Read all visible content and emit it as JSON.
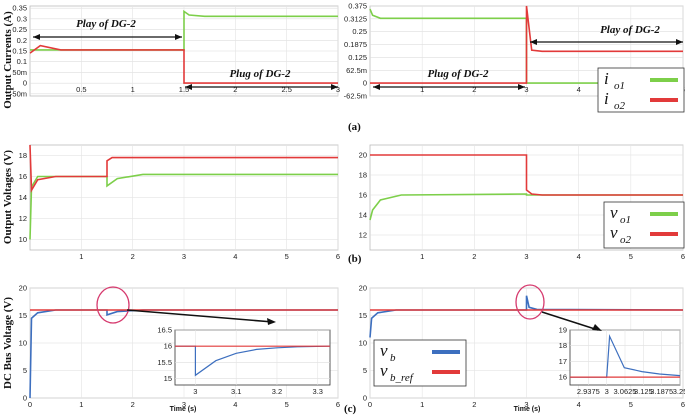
{
  "figure": {
    "ylabels": {
      "currents": "Output Currents (A)",
      "voltages": "Output Voltages (V)",
      "bus": "DC Bus Voltage (V)"
    },
    "panel_labels": {
      "a": "(a)",
      "b": "(b)",
      "c": "(c)"
    },
    "xlabel": "Time (s)",
    "annotations": {
      "play": "Play of DG-2",
      "plug": "Plug of DG-2"
    }
  },
  "legends": {
    "currents": [
      {
        "base": "i",
        "sub": "o1",
        "color": "#7dcf4a"
      },
      {
        "base": "i",
        "sub": "o2",
        "color": "#e23a3a"
      }
    ],
    "voltages": [
      {
        "base": "v",
        "sub": "o1",
        "color": "#7dcf4a"
      },
      {
        "base": "v",
        "sub": "o2",
        "color": "#e23a3a"
      }
    ],
    "bus": [
      {
        "base": "v",
        "sub": "b",
        "color": "#3d6fbf"
      },
      {
        "base": "v",
        "sub": "b_ref",
        "color": "#e23a3a"
      }
    ]
  },
  "chart_data": [
    {
      "id": "a_left",
      "type": "line",
      "title": "",
      "xlabel": "",
      "ylabel": "Output Currents (A)",
      "xlim": [
        0,
        3
      ],
      "ylim": [
        -0.06,
        0.36
      ],
      "xticks": [
        "0.5",
        "1",
        "1.5",
        "2",
        "2.5",
        "3"
      ],
      "yticks": [
        "-50m",
        "0",
        "50m",
        "0.1",
        "0.15",
        "0.2",
        "0.25",
        "0.3",
        "0.35"
      ],
      "series": [
        {
          "name": "io1",
          "color": "#7dcf4a",
          "x": [
            0,
            1.5,
            1.5,
            1.55,
            1.7,
            3
          ],
          "y": [
            0.155,
            0.155,
            0.335,
            0.318,
            0.312,
            0.312
          ]
        },
        {
          "name": "io2",
          "color": "#e23a3a",
          "x": [
            0,
            0.1,
            0.3,
            1.5,
            1.5,
            3
          ],
          "y": [
            0.14,
            0.175,
            0.155,
            0.155,
            0,
            0
          ]
        }
      ]
    },
    {
      "id": "a_right",
      "type": "line",
      "title": "",
      "xlabel": "",
      "ylabel": "",
      "xlim": [
        0,
        6
      ],
      "ylim": [
        -0.0625,
        0.375
      ],
      "xticks": [
        "1",
        "2",
        "3",
        "4",
        "5",
        "6"
      ],
      "yticks": [
        "-62.5m",
        "0",
        "62.5m",
        "0.125",
        "0.1875",
        "0.25",
        "0.3125",
        "0.375"
      ],
      "series": [
        {
          "name": "io1",
          "color": "#7dcf4a",
          "x": [
            0,
            0.05,
            0.2,
            3,
            3,
            6
          ],
          "y": [
            0.36,
            0.33,
            0.315,
            0.315,
            0,
            0
          ]
        },
        {
          "name": "io2",
          "color": "#e23a3a",
          "x": [
            0,
            3,
            3,
            3.1,
            3.3,
            6
          ],
          "y": [
            0,
            0,
            0.375,
            0.16,
            0.155,
            0.155
          ]
        }
      ]
    },
    {
      "id": "b_left",
      "type": "line",
      "title": "",
      "xlabel": "",
      "ylabel": "Output Voltages (V)",
      "xlim": [
        0,
        6
      ],
      "ylim": [
        9,
        19
      ],
      "xticks": [
        "1",
        "2",
        "3",
        "4",
        "5",
        "6"
      ],
      "yticks": [
        "10",
        "12",
        "14",
        "16",
        "18"
      ],
      "series": [
        {
          "name": "vo1",
          "color": "#7dcf4a",
          "x": [
            0,
            0.03,
            0.15,
            0.5,
            1.5,
            1.5,
            1.7,
            2.2,
            6
          ],
          "y": [
            10,
            15,
            16,
            16,
            16,
            15.1,
            15.8,
            16.2,
            16.2
          ]
        },
        {
          "name": "vo2",
          "color": "#e23a3a",
          "x": [
            0,
            0.03,
            0.15,
            0.5,
            1.5,
            1.5,
            1.6,
            6
          ],
          "y": [
            19,
            14.7,
            15.7,
            16,
            16,
            17.5,
            17.8,
            17.8
          ]
        }
      ]
    },
    {
      "id": "b_right",
      "type": "line",
      "title": "",
      "xlabel": "",
      "ylabel": "",
      "xlim": [
        0,
        6
      ],
      "ylim": [
        10.5,
        21
      ],
      "xticks": [
        "1",
        "2",
        "3",
        "4",
        "5",
        "6"
      ],
      "yticks": [
        "12",
        "14",
        "16",
        "18",
        "20"
      ],
      "series": [
        {
          "name": "vo1",
          "color": "#7dcf4a",
          "x": [
            0,
            0.05,
            0.2,
            0.6,
            3,
            3,
            6
          ],
          "y": [
            13.5,
            14.5,
            15.5,
            16,
            16.1,
            16,
            16
          ]
        },
        {
          "name": "vo2",
          "color": "#e23a3a",
          "x": [
            0,
            3,
            3,
            3.1,
            3.3,
            6
          ],
          "y": [
            20,
            20,
            16.5,
            16.1,
            16,
            16
          ]
        }
      ]
    },
    {
      "id": "c_left",
      "type": "line",
      "title": "",
      "xlabel": "Time (s)",
      "ylabel": "DC Bus Voltage (V)",
      "xlim": [
        0,
        6
      ],
      "ylim": [
        0,
        20
      ],
      "xticks": [
        "0",
        "1",
        "2",
        "3",
        "4",
        "5",
        "6"
      ],
      "yticks": [
        "0",
        "5",
        "10",
        "15",
        "20"
      ],
      "series": [
        {
          "name": "vb",
          "color": "#3d6fbf",
          "x": [
            0,
            0.03,
            0.15,
            0.5,
            1.5,
            1.5,
            1.7,
            2.2,
            6
          ],
          "y": [
            0,
            14.5,
            15.5,
            16,
            16,
            15.1,
            15.7,
            16,
            16
          ]
        },
        {
          "name": "vb_ref",
          "color": "#e23a3a",
          "x": [
            0,
            6
          ],
          "y": [
            16,
            16
          ]
        }
      ]
    },
    {
      "id": "c_left_inset",
      "type": "line",
      "title": "",
      "xlabel": "",
      "ylabel": "",
      "xlim": [
        2.95,
        3.33
      ],
      "ylim": [
        14.8,
        16.5
      ],
      "xticks": [
        "3",
        "3.1",
        "3.2",
        "3.3"
      ],
      "yticks": [
        "15",
        "15.5",
        "16",
        "16.5"
      ],
      "series": [
        {
          "name": "vb",
          "color": "#3d6fbf",
          "x": [
            2.95,
            3,
            3,
            3.05,
            3.1,
            3.15,
            3.2,
            3.25,
            3.33
          ],
          "y": [
            16,
            16,
            15.1,
            15.55,
            15.78,
            15.9,
            15.95,
            15.98,
            16
          ]
        },
        {
          "name": "vb_ref",
          "color": "#e23a3a",
          "x": [
            2.95,
            3.33
          ],
          "y": [
            16,
            16
          ]
        }
      ]
    },
    {
      "id": "c_right",
      "type": "line",
      "title": "",
      "xlabel": "Time (s)",
      "ylabel": "",
      "xlim": [
        0,
        6
      ],
      "ylim": [
        0,
        20
      ],
      "xticks": [
        "0",
        "1",
        "2",
        "3",
        "4",
        "5",
        "6"
      ],
      "yticks": [
        "0",
        "5",
        "10",
        "15",
        "20"
      ],
      "series": [
        {
          "name": "vb",
          "color": "#3d6fbf",
          "x": [
            0,
            0.03,
            0.15,
            0.5,
            3,
            3,
            3.05,
            3.2,
            6
          ],
          "y": [
            11,
            14.5,
            15.5,
            16,
            16,
            18.6,
            16.5,
            16.1,
            16
          ]
        },
        {
          "name": "vb_ref",
          "color": "#e23a3a",
          "x": [
            0,
            6
          ],
          "y": [
            16,
            16
          ]
        }
      ]
    },
    {
      "id": "c_right_inset",
      "type": "line",
      "title": "",
      "xlabel": "",
      "ylabel": "",
      "xlim": [
        2.875,
        3.25
      ],
      "ylim": [
        15.5,
        19
      ],
      "xticks": [
        "2.9375",
        "3",
        "3.0625",
        "3.125",
        "3.1875",
        "3.25"
      ],
      "yticks": [
        "16",
        "17",
        "18",
        "19"
      ],
      "series": [
        {
          "name": "vb",
          "color": "#3d6fbf",
          "x": [
            2.875,
            3,
            3,
            3.01,
            3.06,
            3.12,
            3.18,
            3.25
          ],
          "y": [
            16,
            16,
            16,
            18.6,
            16.6,
            16.35,
            16.2,
            16.1
          ]
        },
        {
          "name": "vb_ref",
          "color": "#e23a3a",
          "x": [
            2.875,
            3.25
          ],
          "y": [
            16,
            16
          ]
        }
      ]
    }
  ]
}
